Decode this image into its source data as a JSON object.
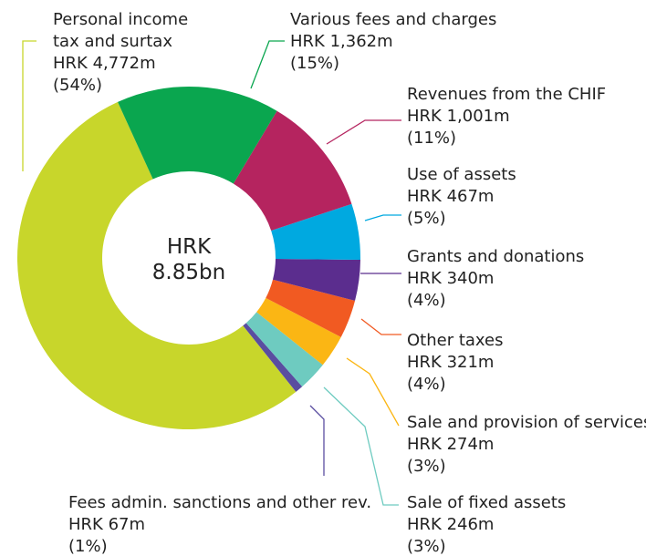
{
  "chart_data": {
    "type": "donut",
    "center_label": [
      "HRK",
      "8.85bn"
    ],
    "categories": [
      "Various fees and charges",
      "Revenues from the CHIF",
      "Use of assets",
      "Grants and donations",
      "Other taxes",
      "Sale and provision of services",
      "Sale of fixed assets",
      "Fees admin. sanctions and other rev.",
      "Personal income tax and surtax"
    ],
    "values": [
      1362,
      1001,
      467,
      340,
      321,
      274,
      246,
      67,
      4772
    ],
    "value_labels": [
      "HRK 1,362m",
      "HRK 1,001m",
      "HRK 467m",
      "HRK 340m",
      "HRK 321m",
      "HRK 274m",
      "HRK 246m",
      "HRK 67m",
      "HRK 4,772m"
    ],
    "shares": [
      15,
      11,
      5,
      4,
      4,
      3,
      3,
      1,
      54
    ],
    "share_labels": [
      "(15%)",
      "(11%)",
      "(5%)",
      "(4%)",
      "(4%)",
      "(3%)",
      "(3%)",
      "(1%)",
      "(54%)"
    ],
    "colors": [
      "#0aa64f",
      "#b5245f",
      "#00a9e0",
      "#5b2d8e",
      "#f15a22",
      "#fbb614",
      "#6ecbc0",
      "#5a4da0",
      "#c8d62b"
    ]
  }
}
